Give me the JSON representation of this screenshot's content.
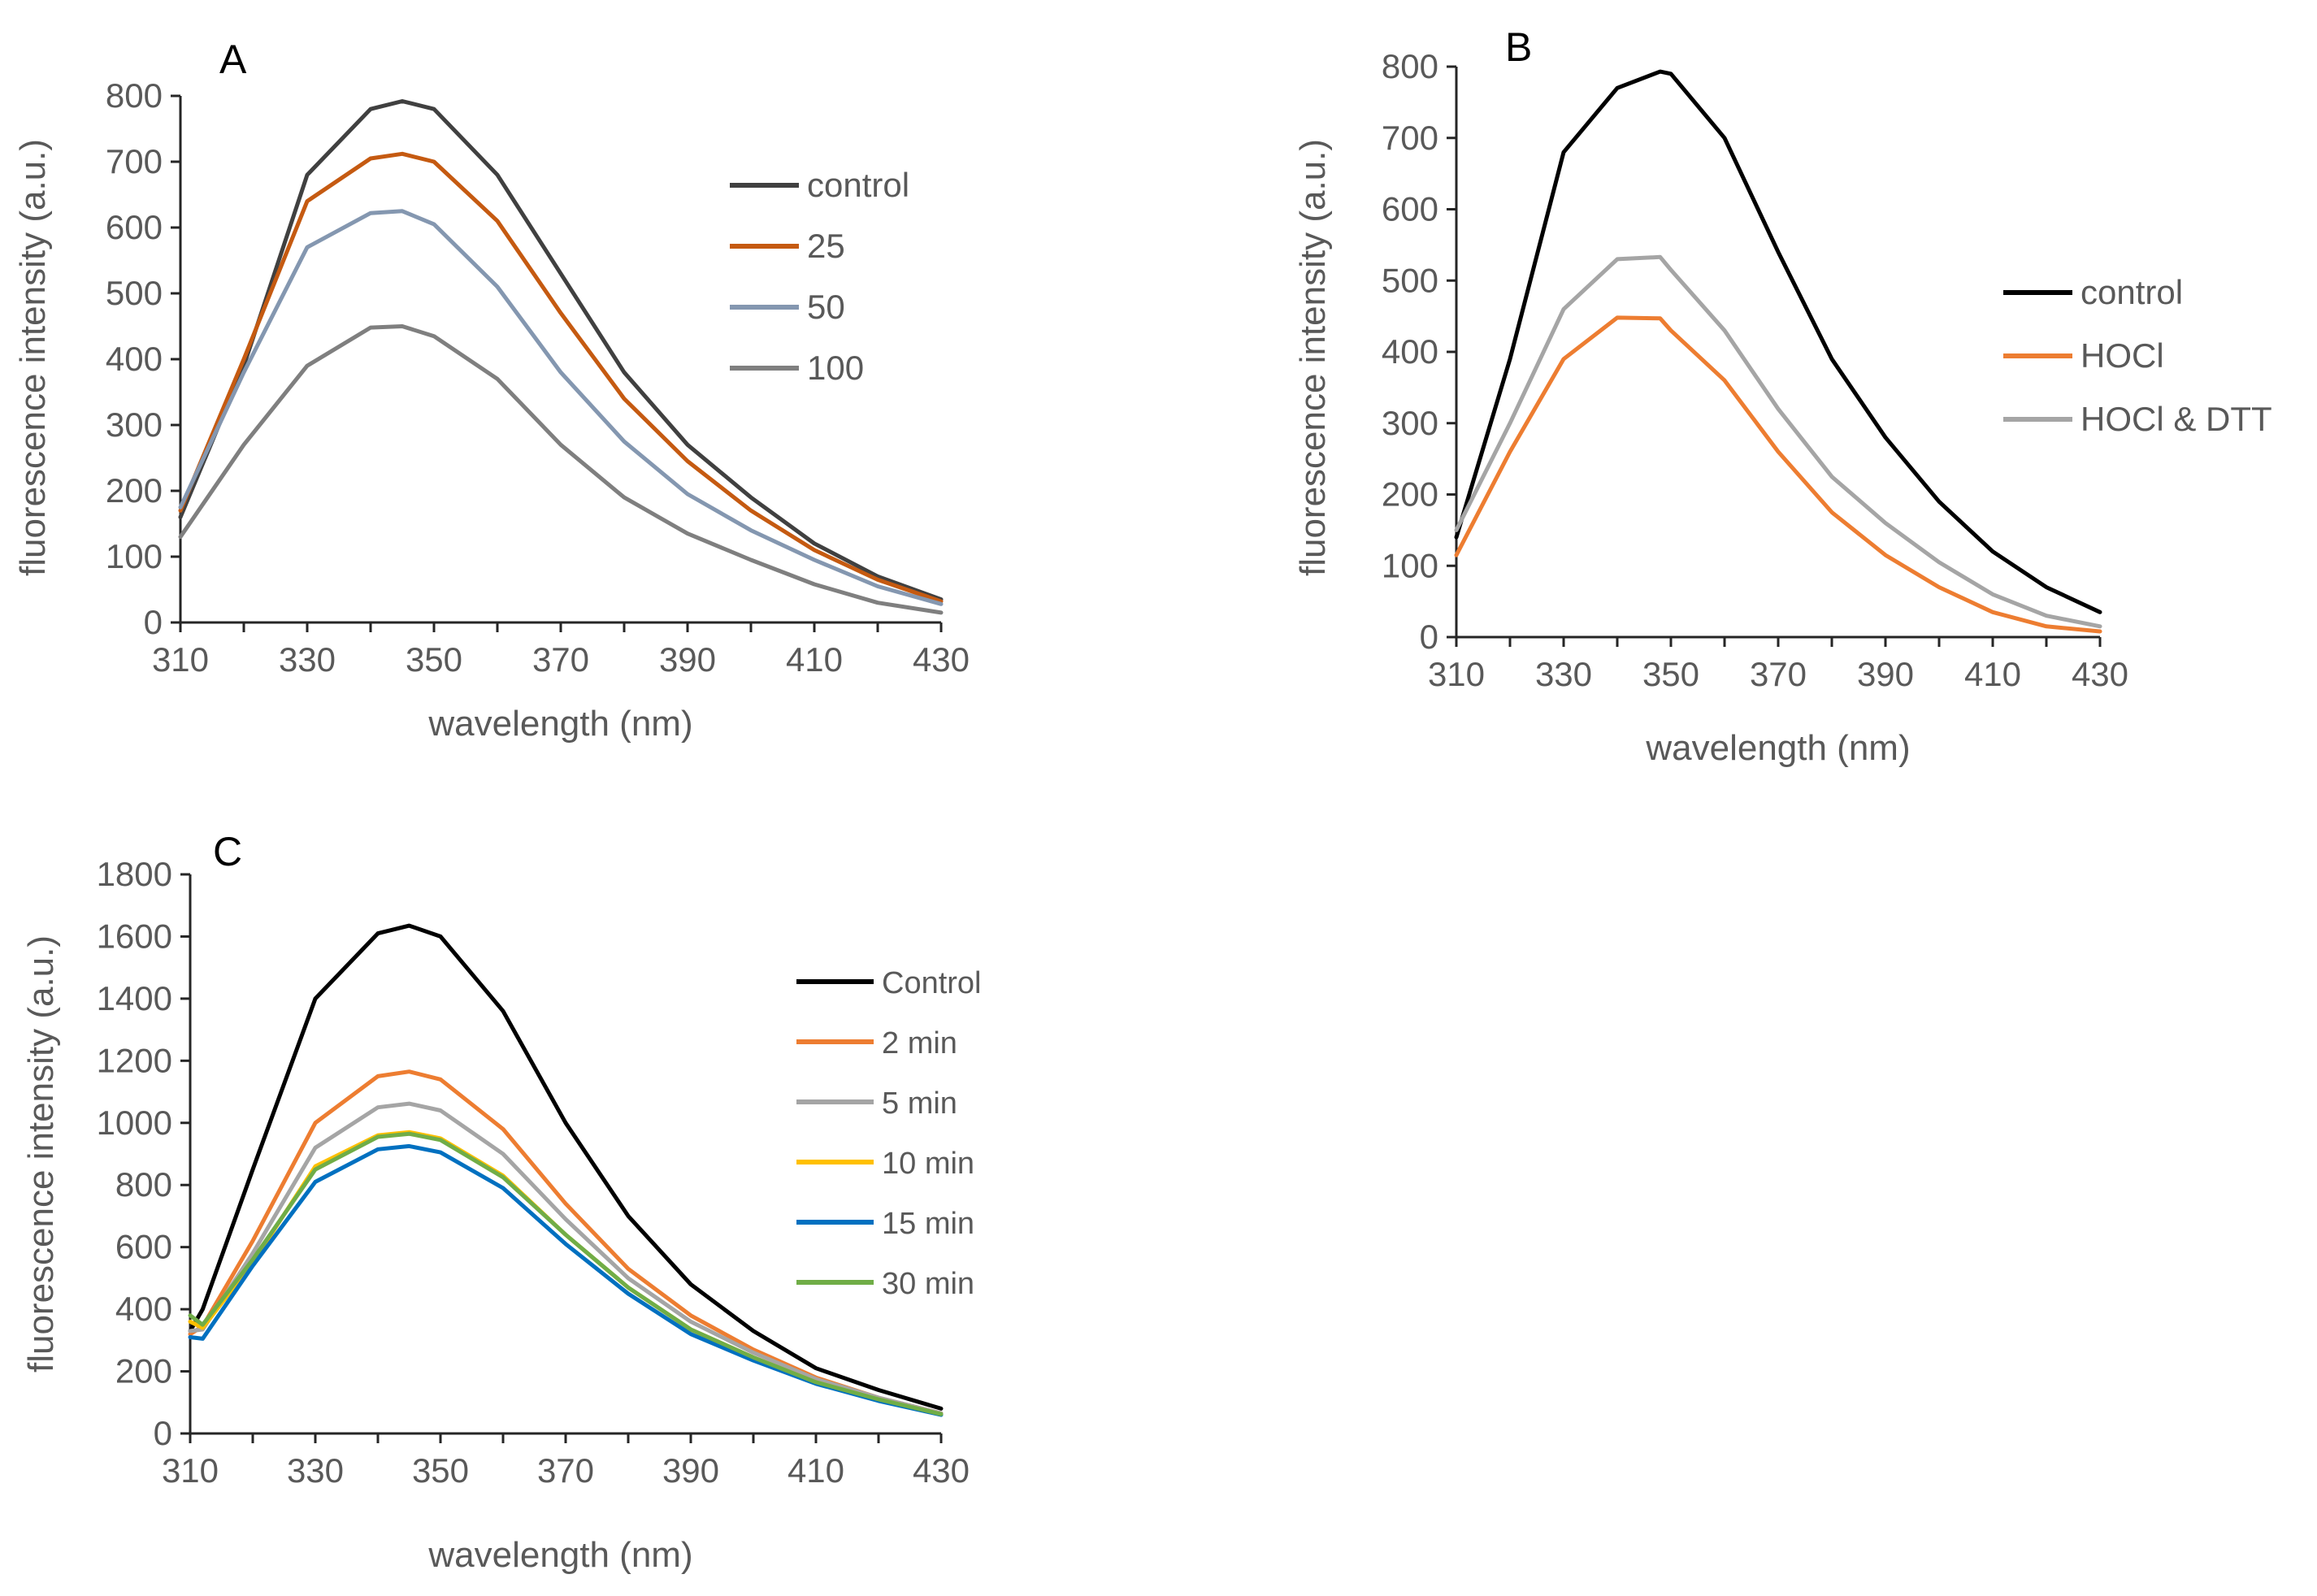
{
  "chart_data": [
    {
      "panel": "A",
      "type": "line",
      "xlabel": "wavelength (nm)",
      "ylabel": "fluorescence intensity (a.u.)",
      "xlim": [
        310,
        430
      ],
      "ylim": [
        0,
        800
      ],
      "xticks": [
        310,
        330,
        350,
        370,
        390,
        410,
        430
      ],
      "yticks": [
        0,
        100,
        200,
        300,
        400,
        500,
        600,
        700,
        800
      ],
      "legend_position": "right",
      "x": [
        310,
        320,
        330,
        340,
        345,
        350,
        360,
        370,
        380,
        390,
        400,
        410,
        420,
        430
      ],
      "series": [
        {
          "name": "control",
          "color": "#404040",
          "values": [
            160,
            390,
            680,
            780,
            792,
            780,
            680,
            530,
            380,
            270,
            190,
            120,
            70,
            35
          ]
        },
        {
          "name": "25",
          "color": "#c55a11",
          "values": [
            170,
            400,
            640,
            705,
            712,
            700,
            610,
            470,
            340,
            245,
            170,
            110,
            65,
            32
          ]
        },
        {
          "name": "50",
          "color": "#8497b0",
          "values": [
            175,
            380,
            570,
            622,
            625,
            605,
            510,
            380,
            275,
            195,
            140,
            95,
            55,
            28
          ]
        },
        {
          "name": "100",
          "color": "#7f7f7f",
          "values": [
            130,
            270,
            390,
            448,
            450,
            435,
            370,
            270,
            190,
            135,
            95,
            58,
            30,
            15
          ]
        }
      ]
    },
    {
      "panel": "B",
      "type": "line",
      "xlabel": "wavelength (nm)",
      "ylabel": "fluorescence intensity (a.u.)",
      "xlim": [
        310,
        430
      ],
      "ylim": [
        0,
        800
      ],
      "xticks": [
        310,
        330,
        350,
        370,
        390,
        410,
        430
      ],
      "yticks": [
        0,
        100,
        200,
        300,
        400,
        500,
        600,
        700,
        800
      ],
      "legend_position": "right",
      "x": [
        310,
        320,
        330,
        340,
        348,
        350,
        360,
        370,
        380,
        390,
        400,
        410,
        420,
        430
      ],
      "series": [
        {
          "name": "control",
          "color": "#000000",
          "values": [
            140,
            390,
            680,
            770,
            793,
            790,
            700,
            540,
            390,
            280,
            190,
            120,
            70,
            35
          ]
        },
        {
          "name": "HOCl",
          "color": "#ed7d31",
          "values": [
            115,
            260,
            390,
            448,
            447,
            430,
            360,
            260,
            175,
            115,
            70,
            35,
            15,
            8
          ]
        },
        {
          "name": "HOCl & DTT",
          "color": "#a5a5a5",
          "values": [
            150,
            300,
            460,
            530,
            533,
            515,
            430,
            320,
            225,
            160,
            105,
            60,
            30,
            15
          ]
        }
      ]
    },
    {
      "panel": "C",
      "type": "line",
      "xlabel": "wavelength  (nm)",
      "ylabel": "fluorescence intensity (a.u.)",
      "xlim": [
        310,
        430
      ],
      "ylim": [
        0,
        1800
      ],
      "xticks": [
        310,
        330,
        350,
        370,
        390,
        410,
        430
      ],
      "yticks": [
        0,
        200,
        400,
        600,
        800,
        1000,
        1200,
        1400,
        1600,
        1800
      ],
      "legend_position": "right",
      "x": [
        310,
        312,
        320,
        330,
        340,
        345,
        350,
        360,
        370,
        380,
        390,
        400,
        410,
        420,
        430
      ],
      "series": [
        {
          "name": "Control",
          "color": "#000000",
          "values": [
            330,
            400,
            850,
            1400,
            1610,
            1635,
            1600,
            1360,
            1000,
            700,
            480,
            330,
            210,
            140,
            80
          ]
        },
        {
          "name": "2 min",
          "color": "#ed7d31",
          "values": [
            320,
            345,
            620,
            1000,
            1150,
            1165,
            1140,
            980,
            740,
            530,
            380,
            270,
            180,
            115,
            65
          ]
        },
        {
          "name": "5 min",
          "color": "#a5a5a5",
          "values": [
            330,
            335,
            580,
            920,
            1050,
            1062,
            1040,
            900,
            690,
            500,
            360,
            260,
            175,
            115,
            65
          ]
        },
        {
          "name": "10 min",
          "color": "#ffc000",
          "values": [
            360,
            340,
            550,
            860,
            960,
            970,
            950,
            830,
            640,
            470,
            335,
            245,
            165,
            110,
            62
          ]
        },
        {
          "name": "15 min",
          "color": "#0070c0",
          "values": [
            310,
            305,
            540,
            810,
            915,
            925,
            905,
            790,
            610,
            450,
            320,
            235,
            160,
            105,
            60
          ]
        },
        {
          "name": "30 min",
          "color": "#70ad47",
          "values": [
            380,
            350,
            560,
            850,
            955,
            965,
            945,
            825,
            640,
            470,
            335,
            245,
            165,
            110,
            62
          ]
        }
      ]
    }
  ]
}
